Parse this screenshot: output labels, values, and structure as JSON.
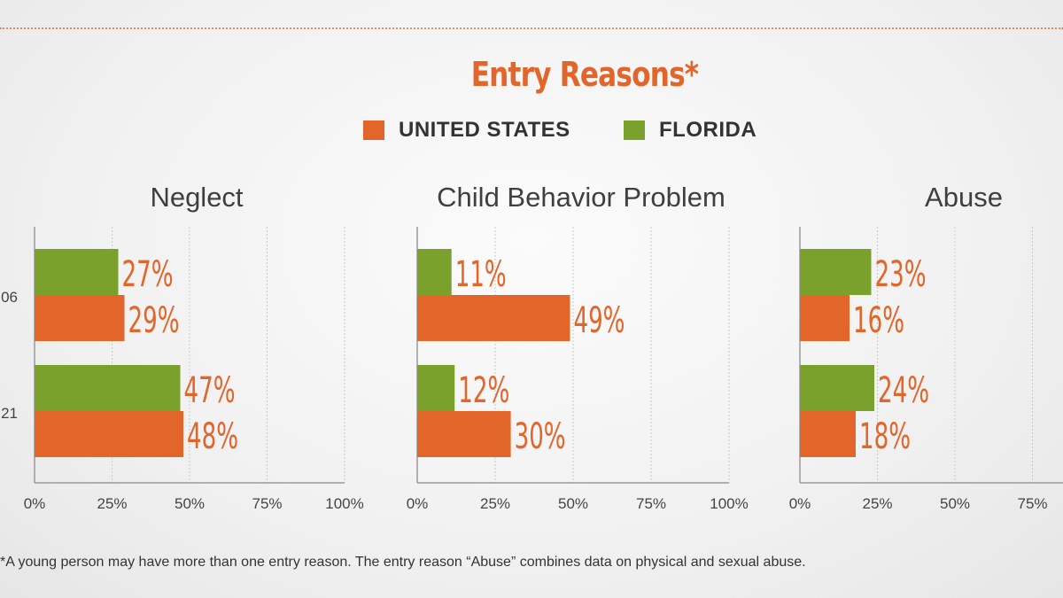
{
  "title": "Entry Reasons*",
  "legend": [
    {
      "label": "UNITED STATES",
      "color": "#e2652a"
    },
    {
      "label": "FLORIDA",
      "color": "#7aa12b"
    }
  ],
  "footnote": "*A young person may have more than one entry reason. The entry reason “Abuse” combines data on physical and sexual abuse.",
  "colors": {
    "united_states": "#e2652a",
    "florida": "#7aa12b",
    "label": "#e2652a",
    "axis": "#bdbdbd"
  },
  "chart_data": [
    {
      "type": "bar",
      "title": "Neglect",
      "categories": [
        "06",
        "21"
      ],
      "series": [
        {
          "name": "FLORIDA",
          "values": [
            27,
            47
          ]
        },
        {
          "name": "UNITED STATES",
          "values": [
            29,
            48
          ]
        }
      ],
      "xlim": [
        0,
        100
      ],
      "ticks": [
        "0%",
        "25%",
        "50%",
        "75%",
        "100%"
      ],
      "grid": true
    },
    {
      "type": "bar",
      "title": "Child Behavior Problem",
      "categories": [
        "",
        ""
      ],
      "series": [
        {
          "name": "FLORIDA",
          "values": [
            11,
            12
          ]
        },
        {
          "name": "UNITED STATES",
          "values": [
            49,
            30
          ]
        }
      ],
      "xlim": [
        0,
        100
      ],
      "ticks": [
        "0%",
        "25%",
        "50%",
        "75%",
        "100%"
      ],
      "grid": true
    },
    {
      "type": "bar",
      "title": "Abuse",
      "categories": [
        "",
        ""
      ],
      "series": [
        {
          "name": "FLORIDA",
          "values": [
            23,
            24
          ]
        },
        {
          "name": "UNITED STATES",
          "values": [
            16,
            18
          ]
        }
      ],
      "xlim": [
        0,
        100
      ],
      "ticks": [
        "0%",
        "25%",
        "50%",
        "75%"
      ],
      "grid": true
    }
  ]
}
